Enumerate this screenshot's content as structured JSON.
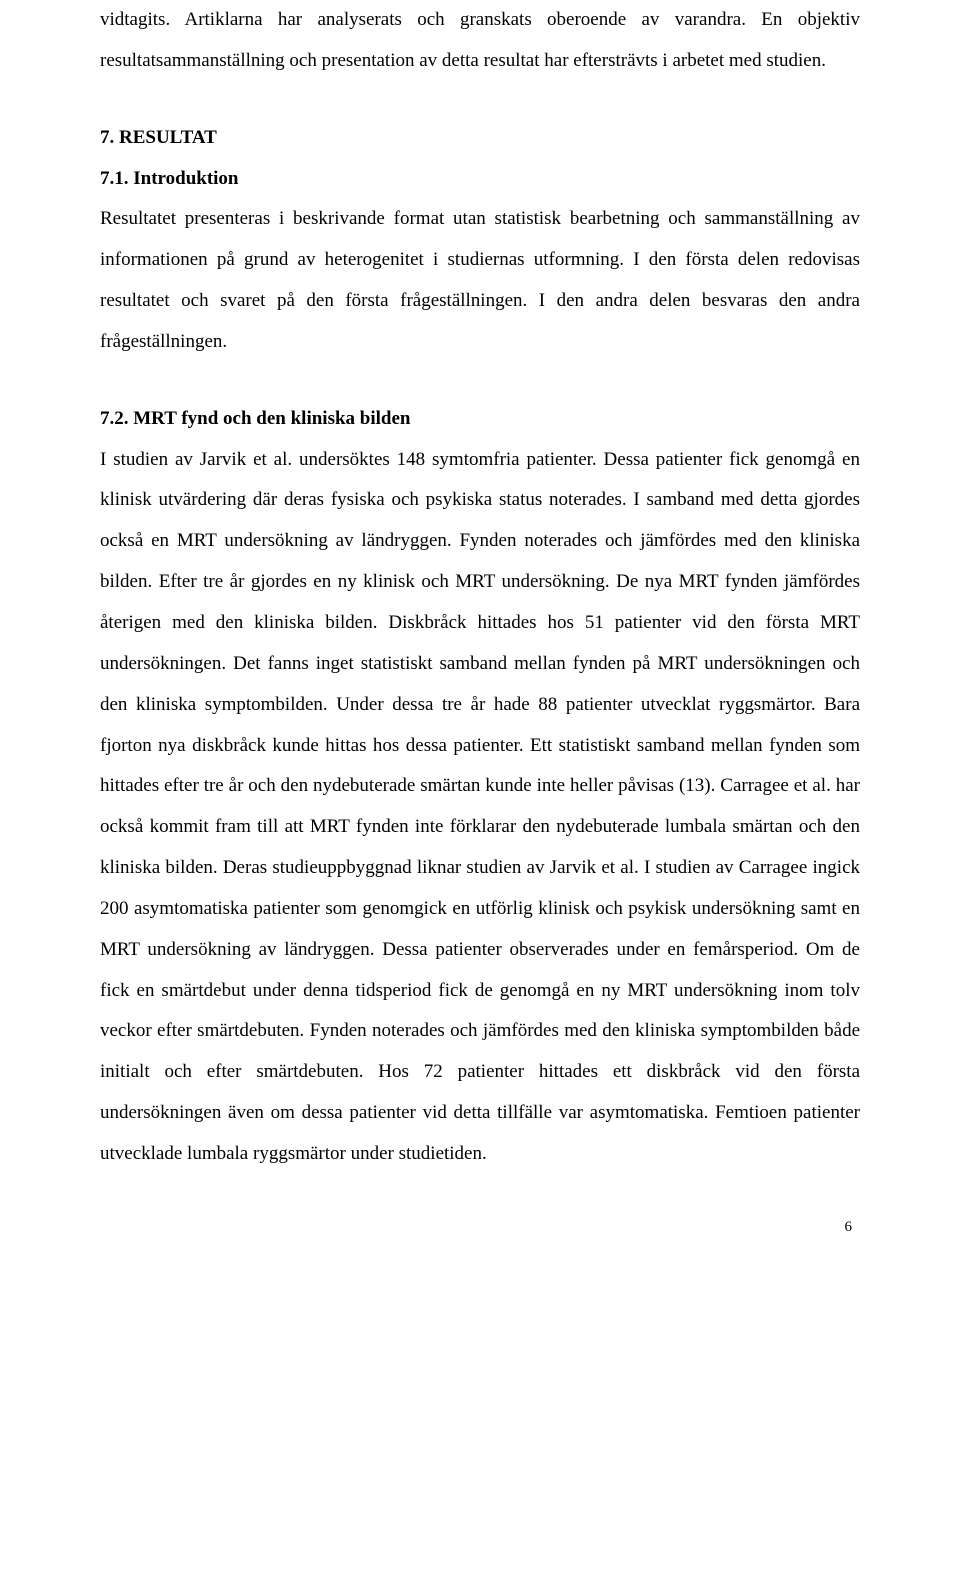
{
  "document": {
    "intro_paragraph": "vidtagits. Artiklarna har analyserats och granskats oberoende av varandra. En objektiv resultatsammanställning och presentation av detta resultat har eftersträvts i arbetet med studien.",
    "section7": {
      "heading": "7. RESULTAT",
      "sub1": {
        "heading": "7.1. Introduktion",
        "body": "Resultatet presenteras i beskrivande format utan statistisk bearbetning och sammanställning av informationen på grund av heterogenitet i studiernas utformning. I den första delen redovisas resultatet och svaret på den första frågeställningen. I den andra delen besvaras den andra frågeställningen."
      },
      "sub2": {
        "heading": "7.2. MRT fynd och den kliniska bilden",
        "body": "I studien av Jarvik et al. undersöktes 148 symtomfria patienter. Dessa patienter fick genomgå en klinisk utvärdering där deras fysiska och psykiska status noterades. I samband med detta gjordes också en MRT undersökning av ländryggen. Fynden noterades och jämfördes med den kliniska bilden. Efter tre år gjordes en ny klinisk och MRT undersökning. De nya MRT fynden jämfördes återigen med den kliniska bilden. Diskbråck hittades hos 51 patienter vid den första MRT undersökningen. Det fanns inget statistiskt samband mellan fynden på MRT undersökningen och den kliniska symptombilden. Under dessa tre år hade 88 patienter utvecklat ryggsmärtor. Bara fjorton nya diskbråck kunde hittas hos dessa patienter. Ett statistiskt samband mellan fynden som hittades efter tre år och den nydebuterade smärtan kunde inte heller påvisas (13). Carragee et al. har också kommit fram till att MRT fynden inte förklarar den nydebuterade lumbala smärtan och den kliniska bilden. Deras studieuppbyggnad liknar studien av Jarvik et al. I studien av Carragee ingick 200 asymtomatiska patienter som genomgick en utförlig klinisk och psykisk undersökning samt en MRT undersökning av ländryggen. Dessa patienter observerades under en femårsperiod. Om de fick en smärtdebut under denna tidsperiod fick de genomgå en ny MRT undersökning inom tolv veckor efter smärtdebuten. Fynden noterades och jämfördes med den kliniska symptombilden både initialt och efter smärtdebuten. Hos 72 patienter hittades ett diskbråck vid den första undersökningen även om dessa patienter vid detta tillfälle var asymtomatiska. Femtioen patienter utvecklade lumbala ryggsmärtor under studietiden."
      }
    },
    "page_number": "6"
  }
}
